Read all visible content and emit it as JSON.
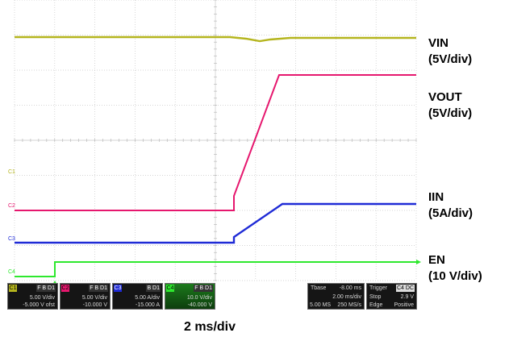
{
  "channels": [
    {
      "id": "C1",
      "label_line1": "VIN",
      "label_line2": "(5V/div)",
      "color": "#b5b51e",
      "marker": "C1",
      "scale": "5.00 V/div",
      "offset": "-5.000 V ofst",
      "flags": "F B D1"
    },
    {
      "id": "C2",
      "label_line1": "VOUT",
      "label_line2": "(5V/div)",
      "color": "#e6176e",
      "marker": "C2",
      "scale": "5.00 V/div",
      "offset": "-10.000 V",
      "flags": "F B D1"
    },
    {
      "id": "C3",
      "label_line1": "IIN",
      "label_line2": "(5A/div)",
      "color": "#1f2bd6",
      "marker": "C3",
      "scale": "5.00 A/div",
      "offset": "-15.000 A",
      "flags": "B D1"
    },
    {
      "id": "C4",
      "label_line1": "EN",
      "label_line2": "(10 V/div)",
      "color": "#2ee82e",
      "marker": "C4",
      "scale": "10.0 V/div",
      "offset": "-40.000 V",
      "flags": "F B D1"
    }
  ],
  "timebase": {
    "title": "Tbase",
    "delay": "-8.00 ms",
    "scale": "2.00 ms/div",
    "sample": "5.00 MS",
    "rate": "250 MS/s"
  },
  "trigger": {
    "title": "Trigger",
    "channel": "C4 DC",
    "mode": "Stop",
    "level": "2.9 V",
    "type": "Edge",
    "slope": "Positive"
  },
  "caption": "2 ms/div"
}
